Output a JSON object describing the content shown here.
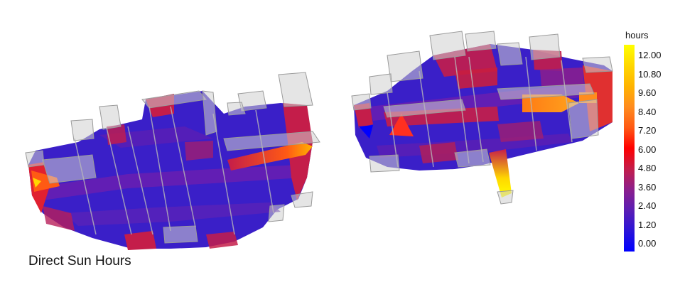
{
  "caption": "Direct Sun Hours",
  "legend": {
    "title": "hours",
    "ticks": [
      "12.00",
      "10.80",
      "9.60",
      "8.40",
      "7.20",
      "6.00",
      "4.80",
      "3.60",
      "2.40",
      "1.20",
      "0.00"
    ],
    "min": 0,
    "max": 12,
    "gradient_colors": [
      "#0000ff",
      "#2a14d8",
      "#5b1eb4",
      "#8c1f8c",
      "#c41d4a",
      "#ff0000",
      "#ff5a14",
      "#ff8c1e",
      "#ffb400",
      "#ffd700",
      "#ffff00"
    ]
  },
  "buildings": [
    {
      "name": "left-building-cluster",
      "dominant_hours": "1.20–3.60",
      "hotspot_hours": "9.60"
    },
    {
      "name": "right-building-cluster",
      "dominant_hours": "2.40–6.00",
      "hotspot_hours": "12.00"
    }
  ]
}
